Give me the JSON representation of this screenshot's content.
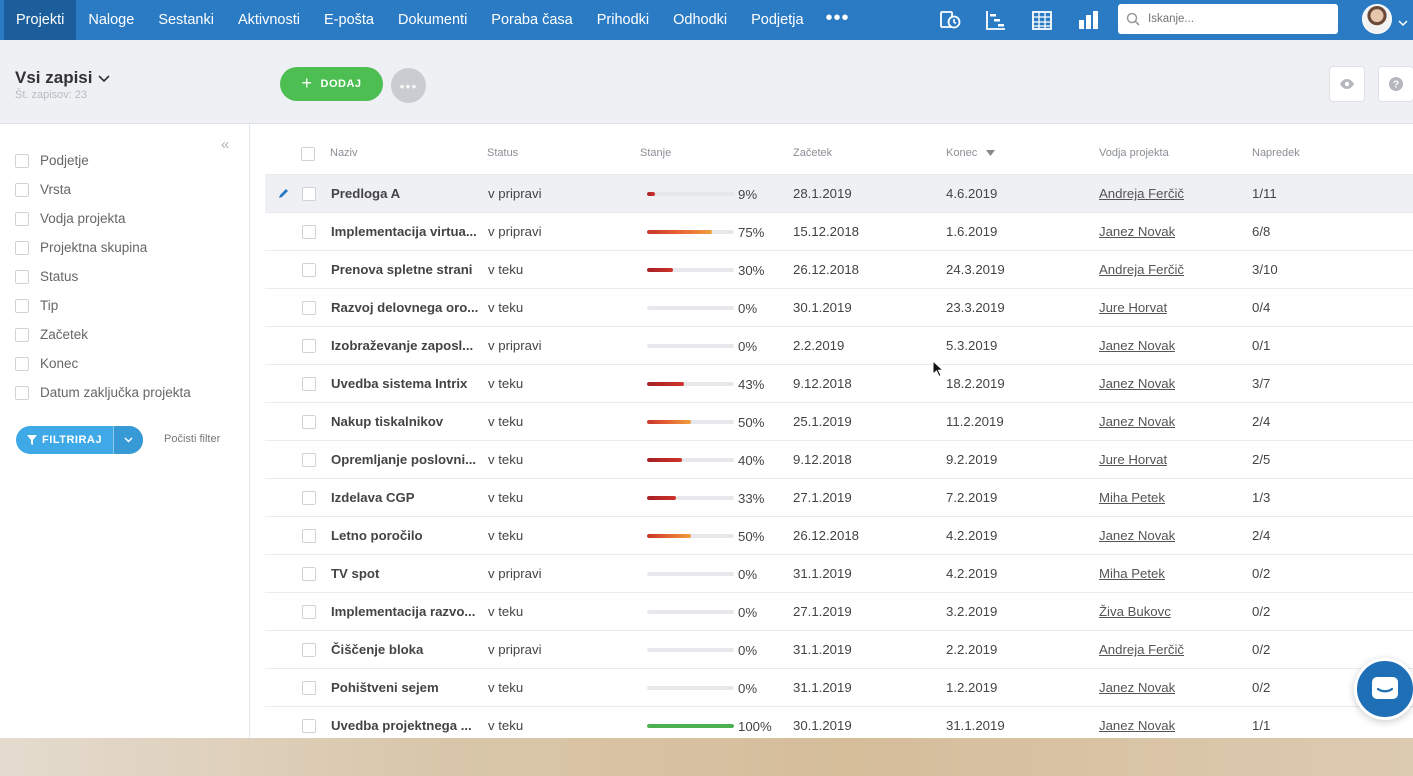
{
  "nav": {
    "items": [
      "Projekti",
      "Naloge",
      "Sestanki",
      "Aktivnosti",
      "E-pošta",
      "Dokumenti",
      "Poraba časa",
      "Prihodki",
      "Odhodki",
      "Podjetja"
    ],
    "more": "•••",
    "icons": [
      "time-calendar-icon",
      "gantt-icon",
      "calendar-icon",
      "bar-chart-icon"
    ],
    "search_placeholder": "Iskanje..."
  },
  "header": {
    "view_title": "Vsi zapisi",
    "record_count": "Št. zapisov: 23",
    "add_label": "DODAJ",
    "more_label": "•••"
  },
  "sidebar": {
    "filters": [
      "Podjetje",
      "Vrsta",
      "Vodja projekta",
      "Projektna skupina",
      "Status",
      "Tip",
      "Začetek",
      "Konec",
      "Datum zaključka projekta"
    ],
    "filter_button": "FILTRIRAJ",
    "clear_filter": "Počisti filter"
  },
  "table": {
    "headers": {
      "name": "Naziv",
      "status": "Status",
      "state": "Stanje",
      "start": "Začetek",
      "end": "Konec",
      "lead": "Vodja projekta",
      "progress": "Napredek"
    },
    "rows": [
      {
        "name": "Predloga A",
        "status": "v pripravi",
        "pct": "9%",
        "progress": 0.09,
        "bar_color": "#c0302a",
        "start": "28.1.2019",
        "end": "4.6.2019",
        "lead": "Andreja Ferčič",
        "tasks": "1/11"
      },
      {
        "name": "Implementacija virtua...",
        "status": "v pripravi",
        "pct": "75%",
        "progress": 0.75,
        "bar_color": "#e8743b",
        "start": "15.12.2018",
        "end": "1.6.2019",
        "lead": "Janez Novak",
        "tasks": "6/8"
      },
      {
        "name": "Prenova spletne strani",
        "status": "v teku",
        "pct": "30%",
        "progress": 0.3,
        "bar_color": "#b8282a",
        "start": "26.12.2018",
        "end": "24.3.2019",
        "lead": "Andreja Ferčič",
        "tasks": "3/10"
      },
      {
        "name": "Razvoj delovnega oro...",
        "status": "v teku",
        "pct": "0%",
        "progress": 0,
        "bar_color": "#b8282a",
        "start": "30.1.2019",
        "end": "23.3.2019",
        "lead": "Jure Horvat",
        "tasks": "0/4"
      },
      {
        "name": "Izobraževanje zaposl...",
        "status": "v pripravi",
        "pct": "0%",
        "progress": 0,
        "bar_color": "#b8282a",
        "start": "2.2.2019",
        "end": "5.3.2019",
        "lead": "Janez Novak",
        "tasks": "0/1"
      },
      {
        "name": "Uvedba sistema Intrix",
        "status": "v teku",
        "pct": "43%",
        "progress": 0.43,
        "bar_color": "#b8282a",
        "start": "9.12.2018",
        "end": "18.2.2019",
        "lead": "Janez Novak",
        "tasks": "3/7"
      },
      {
        "name": "Nakup tiskalnikov",
        "status": "v teku",
        "pct": "50%",
        "progress": 0.5,
        "bar_color": "#e8743b",
        "start": "25.1.2019",
        "end": "11.2.2019",
        "lead": "Janez Novak",
        "tasks": "2/4"
      },
      {
        "name": "Opremljanje poslovni...",
        "status": "v teku",
        "pct": "40%",
        "progress": 0.4,
        "bar_color": "#b8282a",
        "start": "9.12.2018",
        "end": "9.2.2019",
        "lead": "Jure Horvat",
        "tasks": "2/5"
      },
      {
        "name": "Izdelava CGP",
        "status": "v teku",
        "pct": "33%",
        "progress": 0.33,
        "bar_color": "#b8282a",
        "start": "27.1.2019",
        "end": "7.2.2019",
        "lead": "Miha Petek",
        "tasks": "1/3"
      },
      {
        "name": "Letno poročilo",
        "status": "v teku",
        "pct": "50%",
        "progress": 0.5,
        "bar_color": "#e8743b",
        "start": "26.12.2018",
        "end": "4.2.2019",
        "lead": "Janez Novak",
        "tasks": "2/4"
      },
      {
        "name": "TV spot",
        "status": "v pripravi",
        "pct": "0%",
        "progress": 0,
        "bar_color": "#b8282a",
        "start": "31.1.2019",
        "end": "4.2.2019",
        "lead": "Miha Petek",
        "tasks": "0/2"
      },
      {
        "name": "Implementacija razvo...",
        "status": "v teku",
        "pct": "0%",
        "progress": 0,
        "bar_color": "#b8282a",
        "start": "27.1.2019",
        "end": "3.2.2019",
        "lead": "Živa Bukovc",
        "tasks": "0/2"
      },
      {
        "name": "Čiščenje bloka",
        "status": "v pripravi",
        "pct": "0%",
        "progress": 0,
        "bar_color": "#b8282a",
        "start": "31.1.2019",
        "end": "2.2.2019",
        "lead": "Andreja Ferčič",
        "tasks": "0/2"
      },
      {
        "name": "Pohištveni sejem",
        "status": "v teku",
        "pct": "0%",
        "progress": 0,
        "bar_color": "#b8282a",
        "start": "31.1.2019",
        "end": "1.2.2019",
        "lead": "Janez Novak",
        "tasks": "0/2"
      },
      {
        "name": "Uvedba projektnega ...",
        "status": "v teku",
        "pct": "100%",
        "progress": 1.0,
        "bar_color": "#4cb050",
        "start": "30.1.2019",
        "end": "31.1.2019",
        "lead": "Janez Novak",
        "tasks": "1/1"
      }
    ]
  },
  "colors": {
    "nav_bg": "#2a7bc4",
    "nav_active": "#1c5e9b",
    "add_green": "#4cbe52",
    "filter_blue": "#3fa9e8"
  }
}
